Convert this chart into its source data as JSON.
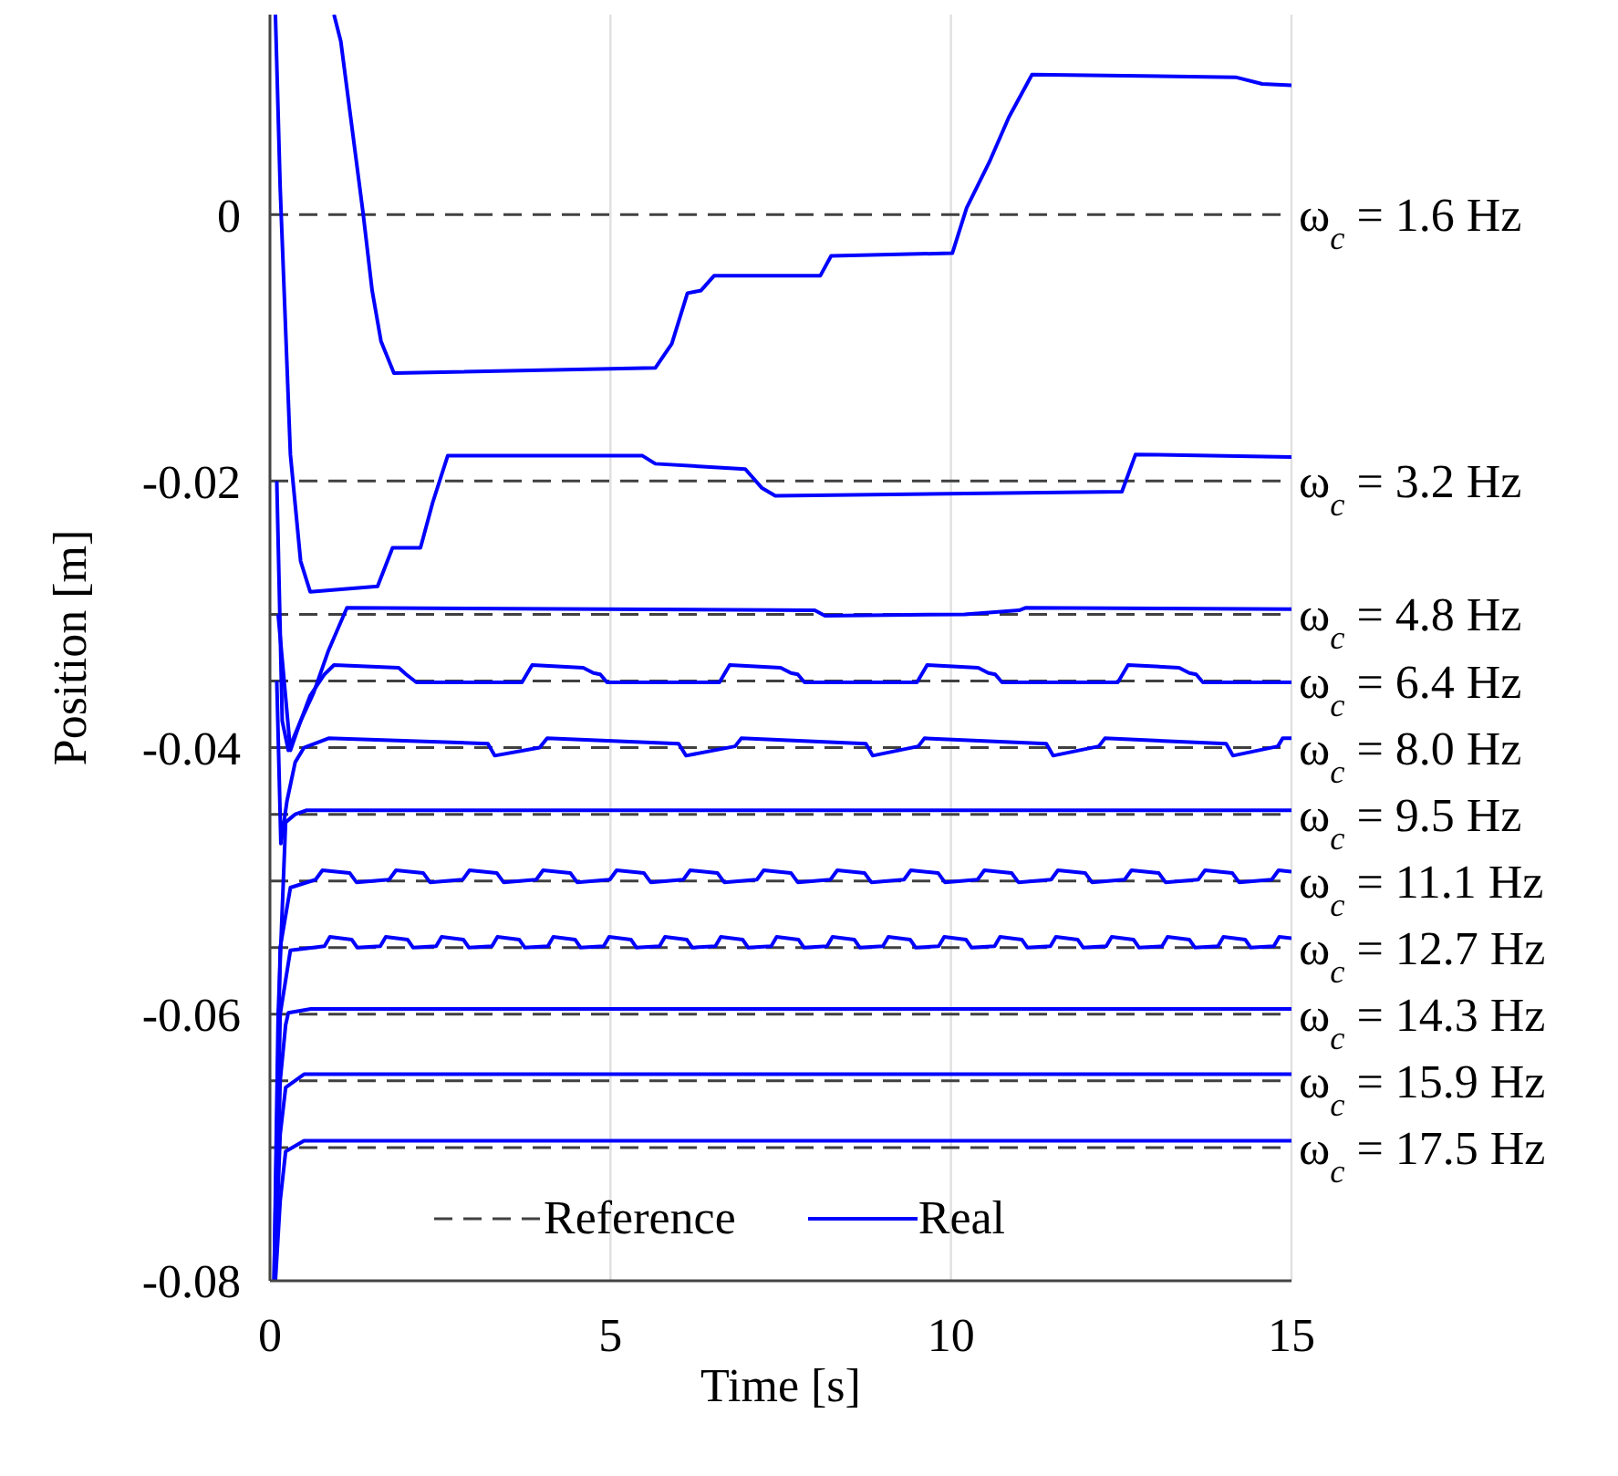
{
  "chart_data": {
    "type": "line",
    "xlabel": "Time [s]",
    "ylabel": "Position [m]",
    "xlim": [
      0,
      15
    ],
    "xticks": [
      0,
      5,
      10,
      15
    ],
    "ylim": [
      -0.08,
      0.015
    ],
    "yticks": [
      0,
      -0.02,
      -0.04,
      -0.06,
      -0.08
    ],
    "grid": "x",
    "legend": "bottom",
    "marker": "none",
    "series": [
      {
        "name": "Reference",
        "color": "#404040",
        "line_style": "dashed",
        "x": [
          0,
          15
        ],
        "values": [
          0,
          0
        ]
      },
      {
        "color": "#404040",
        "line_style": "dashed",
        "x": [
          0,
          15
        ],
        "values": [
          -0.02,
          -0.02
        ]
      },
      {
        "color": "#404040",
        "line_style": "dashed",
        "x": [
          0,
          15
        ],
        "values": [
          -0.03,
          -0.03
        ]
      },
      {
        "color": "#404040",
        "line_style": "dashed",
        "x": [
          0,
          15
        ],
        "values": [
          -0.035,
          -0.035
        ]
      },
      {
        "color": "#404040",
        "line_style": "dashed",
        "x": [
          0,
          15
        ],
        "values": [
          -0.04,
          -0.04
        ]
      },
      {
        "color": "#404040",
        "line_style": "dashed",
        "x": [
          0,
          15
        ],
        "values": [
          -0.045,
          -0.045
        ]
      },
      {
        "color": "#404040",
        "line_style": "dashed",
        "x": [
          0,
          15
        ],
        "values": [
          -0.05,
          -0.05
        ]
      },
      {
        "color": "#404040",
        "line_style": "dashed",
        "x": [
          0,
          15
        ],
        "values": [
          -0.055,
          -0.055
        ]
      },
      {
        "color": "#404040",
        "line_style": "dashed",
        "x": [
          0,
          15
        ],
        "values": [
          -0.06,
          -0.06
        ]
      },
      {
        "color": "#404040",
        "line_style": "dashed",
        "x": [
          0,
          15
        ],
        "values": [
          -0.065,
          -0.065
        ]
      },
      {
        "color": "#404040",
        "line_style": "dashed",
        "x": [
          0,
          15
        ],
        "values": [
          -0.07,
          -0.07
        ]
      },
      {
        "name": "Real",
        "color": "#0000ff",
        "line_style": "solid",
        "x": [
          0.94,
          1.04,
          1.37,
          1.5,
          1.63,
          1.82,
          5.66,
          5.9,
          6.13,
          6.33,
          6.52,
          8.08,
          8.24,
          10.02,
          10.23,
          10.56,
          10.85,
          11.19,
          14.18,
          14.57,
          15
        ],
        "values": [
          0.015,
          0.013,
          0,
          -0.0057,
          -0.0095,
          -0.0119,
          -0.0115,
          -0.0097,
          -0.0059,
          -0.0057,
          -0.0046,
          -0.0046,
          -0.0031,
          -0.0029,
          0.0005,
          0.0039,
          0.0073,
          0.0105,
          0.0103,
          0.0098,
          0.0097
        ]
      },
      {
        "color": "#0000ff",
        "line_style": "solid",
        "x": [
          0.08,
          0.15,
          0.3,
          0.45,
          0.59,
          1.58,
          1.8,
          2.21,
          2.39,
          2.61,
          5.47,
          5.66,
          6.98,
          7.22,
          7.42,
          12.51,
          12.71,
          15
        ],
        "values": [
          0.015,
          0.002,
          -0.018,
          -0.026,
          -0.0283,
          -0.0279,
          -0.025,
          -0.025,
          -0.0216,
          -0.0181,
          -0.0181,
          -0.0187,
          -0.0191,
          -0.0205,
          -0.0211,
          -0.0208,
          -0.018,
          -0.0182
        ]
      },
      {
        "color": "#0000ff",
        "line_style": "solid",
        "x": [
          0.1,
          0.18,
          0.27,
          0.45,
          0.64,
          0.86,
          1.13,
          8.0,
          8.15,
          10.2,
          11.0,
          11.1,
          15
        ],
        "values": [
          -0.02,
          -0.038,
          -0.0402,
          -0.038,
          -0.0359,
          -0.0327,
          -0.0295,
          -0.0297,
          -0.0301,
          -0.03,
          -0.0297,
          -0.0295,
          -0.0296
        ]
      },
      {
        "color": "#0000ff",
        "line_style": "solid",
        "x": [
          0.12,
          0.3,
          0.45,
          0.59,
          0.8,
          0.94,
          1.89,
          2.0,
          2.15,
          3.7,
          3.85,
          4.6,
          4.75,
          4.85,
          4.95,
          6.6,
          6.75,
          7.5,
          7.65,
          7.75,
          7.85,
          9.5,
          9.65,
          10.4,
          10.55,
          10.65,
          10.75,
          12.45,
          12.6,
          13.35,
          13.5,
          13.6,
          13.7,
          15
        ],
        "values": [
          -0.03,
          -0.0402,
          -0.038,
          -0.0361,
          -0.0345,
          -0.0338,
          -0.034,
          -0.0345,
          -0.0351,
          -0.0351,
          -0.0338,
          -0.034,
          -0.0344,
          -0.0345,
          -0.0351,
          -0.0351,
          -0.0338,
          -0.034,
          -0.0344,
          -0.0345,
          -0.0351,
          -0.0351,
          -0.0338,
          -0.034,
          -0.0344,
          -0.0345,
          -0.0351,
          -0.0351,
          -0.0338,
          -0.034,
          -0.0344,
          -0.0345,
          -0.0351,
          -0.0351
        ]
      },
      {
        "color": "#0000ff",
        "line_style": "solid",
        "x": [
          0.1,
          0.16,
          0.25,
          0.37,
          0.5,
          0.86,
          3.2,
          3.3,
          3.96,
          4.07,
          6.0,
          6.11,
          6.83,
          6.92,
          8.75,
          8.85,
          9.52,
          9.61,
          11.4,
          11.5,
          12.17,
          12.26,
          14.04,
          14.14,
          14.8,
          14.87,
          15
        ],
        "values": [
          -0.035,
          -0.0472,
          -0.044,
          -0.0411,
          -0.04,
          -0.0393,
          -0.0397,
          -0.0406,
          -0.04,
          -0.0393,
          -0.0397,
          -0.0406,
          -0.0399,
          -0.0393,
          -0.0397,
          -0.0406,
          -0.0399,
          -0.0393,
          -0.0397,
          -0.0406,
          -0.0399,
          -0.0393,
          -0.0397,
          -0.0406,
          -0.0399,
          -0.0393,
          -0.0393
        ]
      },
      {
        "color": "#0000ff",
        "line_style": "solid",
        "x": [
          0.06,
          0.12,
          0.23,
          0.37,
          0.54,
          15
        ],
        "values": [
          -0.08,
          -0.06,
          -0.0456,
          -0.045,
          -0.0447,
          -0.0447
        ]
      },
      {
        "color": "#0000ff",
        "line_style": "solid",
        "x": [
          0.06,
          0.15,
          0.3,
          0.67,
          0.77,
          1.17,
          1.27,
          1.75,
          1.85,
          2.25,
          2.35,
          2.83,
          2.93,
          3.33,
          3.43,
          3.91,
          4.01,
          4.41,
          4.51,
          4.99,
          5.09,
          5.49,
          5.59,
          6.07,
          6.17,
          6.57,
          6.67,
          7.15,
          7.25,
          7.65,
          7.75,
          8.23,
          8.33,
          8.73,
          8.83,
          9.31,
          9.41,
          9.81,
          9.91,
          10.39,
          10.49,
          10.89,
          10.99,
          11.47,
          11.57,
          11.97,
          12.07,
          12.55,
          12.65,
          13.05,
          13.15,
          13.63,
          13.73,
          14.13,
          14.23,
          14.71,
          14.81,
          15
        ],
        "values": [
          -0.08,
          -0.055,
          -0.0505,
          -0.0499,
          -0.0492,
          -0.0494,
          -0.0501,
          -0.0499,
          -0.0492,
          -0.0494,
          -0.0501,
          -0.0499,
          -0.0492,
          -0.0494,
          -0.0501,
          -0.0499,
          -0.0492,
          -0.0494,
          -0.0501,
          -0.0499,
          -0.0492,
          -0.0494,
          -0.0501,
          -0.0499,
          -0.0492,
          -0.0494,
          -0.0501,
          -0.0499,
          -0.0492,
          -0.0494,
          -0.0501,
          -0.0499,
          -0.0492,
          -0.0494,
          -0.0501,
          -0.0499,
          -0.0492,
          -0.0494,
          -0.0501,
          -0.0499,
          -0.0492,
          -0.0494,
          -0.0501,
          -0.0499,
          -0.0492,
          -0.0494,
          -0.0501,
          -0.0499,
          -0.0492,
          -0.0494,
          -0.0501,
          -0.0499,
          -0.0492,
          -0.0494,
          -0.0501,
          -0.0499,
          -0.0492,
          -0.0493
        ]
      },
      {
        "color": "#0000ff",
        "line_style": "solid",
        "x": [
          0.07,
          0.15,
          0.3,
          0.8,
          0.88,
          1.2,
          1.28,
          1.62,
          1.7,
          2.02,
          2.1,
          2.44,
          2.52,
          2.84,
          2.92,
          3.26,
          3.34,
          3.66,
          3.74,
          4.08,
          4.16,
          4.48,
          4.56,
          4.9,
          4.98,
          5.3,
          5.38,
          5.72,
          5.8,
          6.12,
          6.2,
          6.54,
          6.62,
          6.94,
          7.02,
          7.36,
          7.44,
          7.76,
          7.84,
          8.18,
          8.26,
          8.58,
          8.66,
          9.0,
          9.08,
          9.4,
          9.48,
          9.82,
          9.9,
          10.22,
          10.3,
          10.64,
          10.72,
          11.04,
          11.12,
          11.46,
          11.54,
          11.86,
          11.94,
          12.28,
          12.36,
          12.68,
          12.76,
          13.1,
          13.18,
          13.5,
          13.58,
          13.92,
          14.0,
          14.32,
          14.4,
          14.74,
          14.82,
          15
        ],
        "values": [
          -0.08,
          -0.06,
          -0.0552,
          -0.0549,
          -0.0542,
          -0.0544,
          -0.055,
          -0.0549,
          -0.0542,
          -0.0544,
          -0.055,
          -0.0549,
          -0.0542,
          -0.0544,
          -0.055,
          -0.0549,
          -0.0542,
          -0.0544,
          -0.055,
          -0.0549,
          -0.0542,
          -0.0544,
          -0.055,
          -0.0549,
          -0.0542,
          -0.0544,
          -0.055,
          -0.0549,
          -0.0542,
          -0.0544,
          -0.055,
          -0.0549,
          -0.0542,
          -0.0544,
          -0.055,
          -0.0549,
          -0.0542,
          -0.0544,
          -0.055,
          -0.0549,
          -0.0542,
          -0.0544,
          -0.055,
          -0.0549,
          -0.0542,
          -0.0544,
          -0.055,
          -0.0549,
          -0.0542,
          -0.0544,
          -0.055,
          -0.0549,
          -0.0542,
          -0.0544,
          -0.055,
          -0.0549,
          -0.0542,
          -0.0544,
          -0.055,
          -0.0549,
          -0.0542,
          -0.0544,
          -0.055,
          -0.0549,
          -0.0542,
          -0.0544,
          -0.055,
          -0.0549,
          -0.0542,
          -0.0544,
          -0.055,
          -0.0549,
          -0.0542,
          -0.0543
        ]
      },
      {
        "color": "#0000ff",
        "line_style": "solid",
        "x": [
          0.07,
          0.15,
          0.23,
          0.27,
          0.6,
          15
        ],
        "values": [
          -0.08,
          -0.065,
          -0.0608,
          -0.0599,
          -0.0596,
          -0.0596
        ]
      },
      {
        "color": "#0000ff",
        "line_style": "solid",
        "x": [
          0.07,
          0.15,
          0.23,
          0.5,
          15
        ],
        "values": [
          -0.08,
          -0.069,
          -0.0655,
          -0.0645,
          -0.0645
        ]
      },
      {
        "color": "#0000ff",
        "line_style": "solid",
        "x": [
          0.08,
          0.15,
          0.23,
          0.5,
          15
        ],
        "values": [
          -0.08,
          -0.074,
          -0.0703,
          -0.0695,
          -0.0695
        ]
      }
    ],
    "annotations": [
      "ω$_{c}$ = 1.6 Hz",
      "ω$_{c}$ = 3.2 Hz",
      "ω$_{c}$ = 4.8 Hz",
      "ω$_{c}$ = 6.4 Hz",
      "ω$_{c}$ = 8.0 Hz",
      "ω$_{c}$ = 9.5 Hz",
      "ω$_{c}$ = 11.1 Hz",
      "ω$_{c}$ = 12.7 Hz",
      "ω$_{c}$ = 14.3 Hz",
      "ω$_{c}$ = 15.9 Hz",
      "ω$_{c}$ = 17.5 Hz"
    ]
  }
}
